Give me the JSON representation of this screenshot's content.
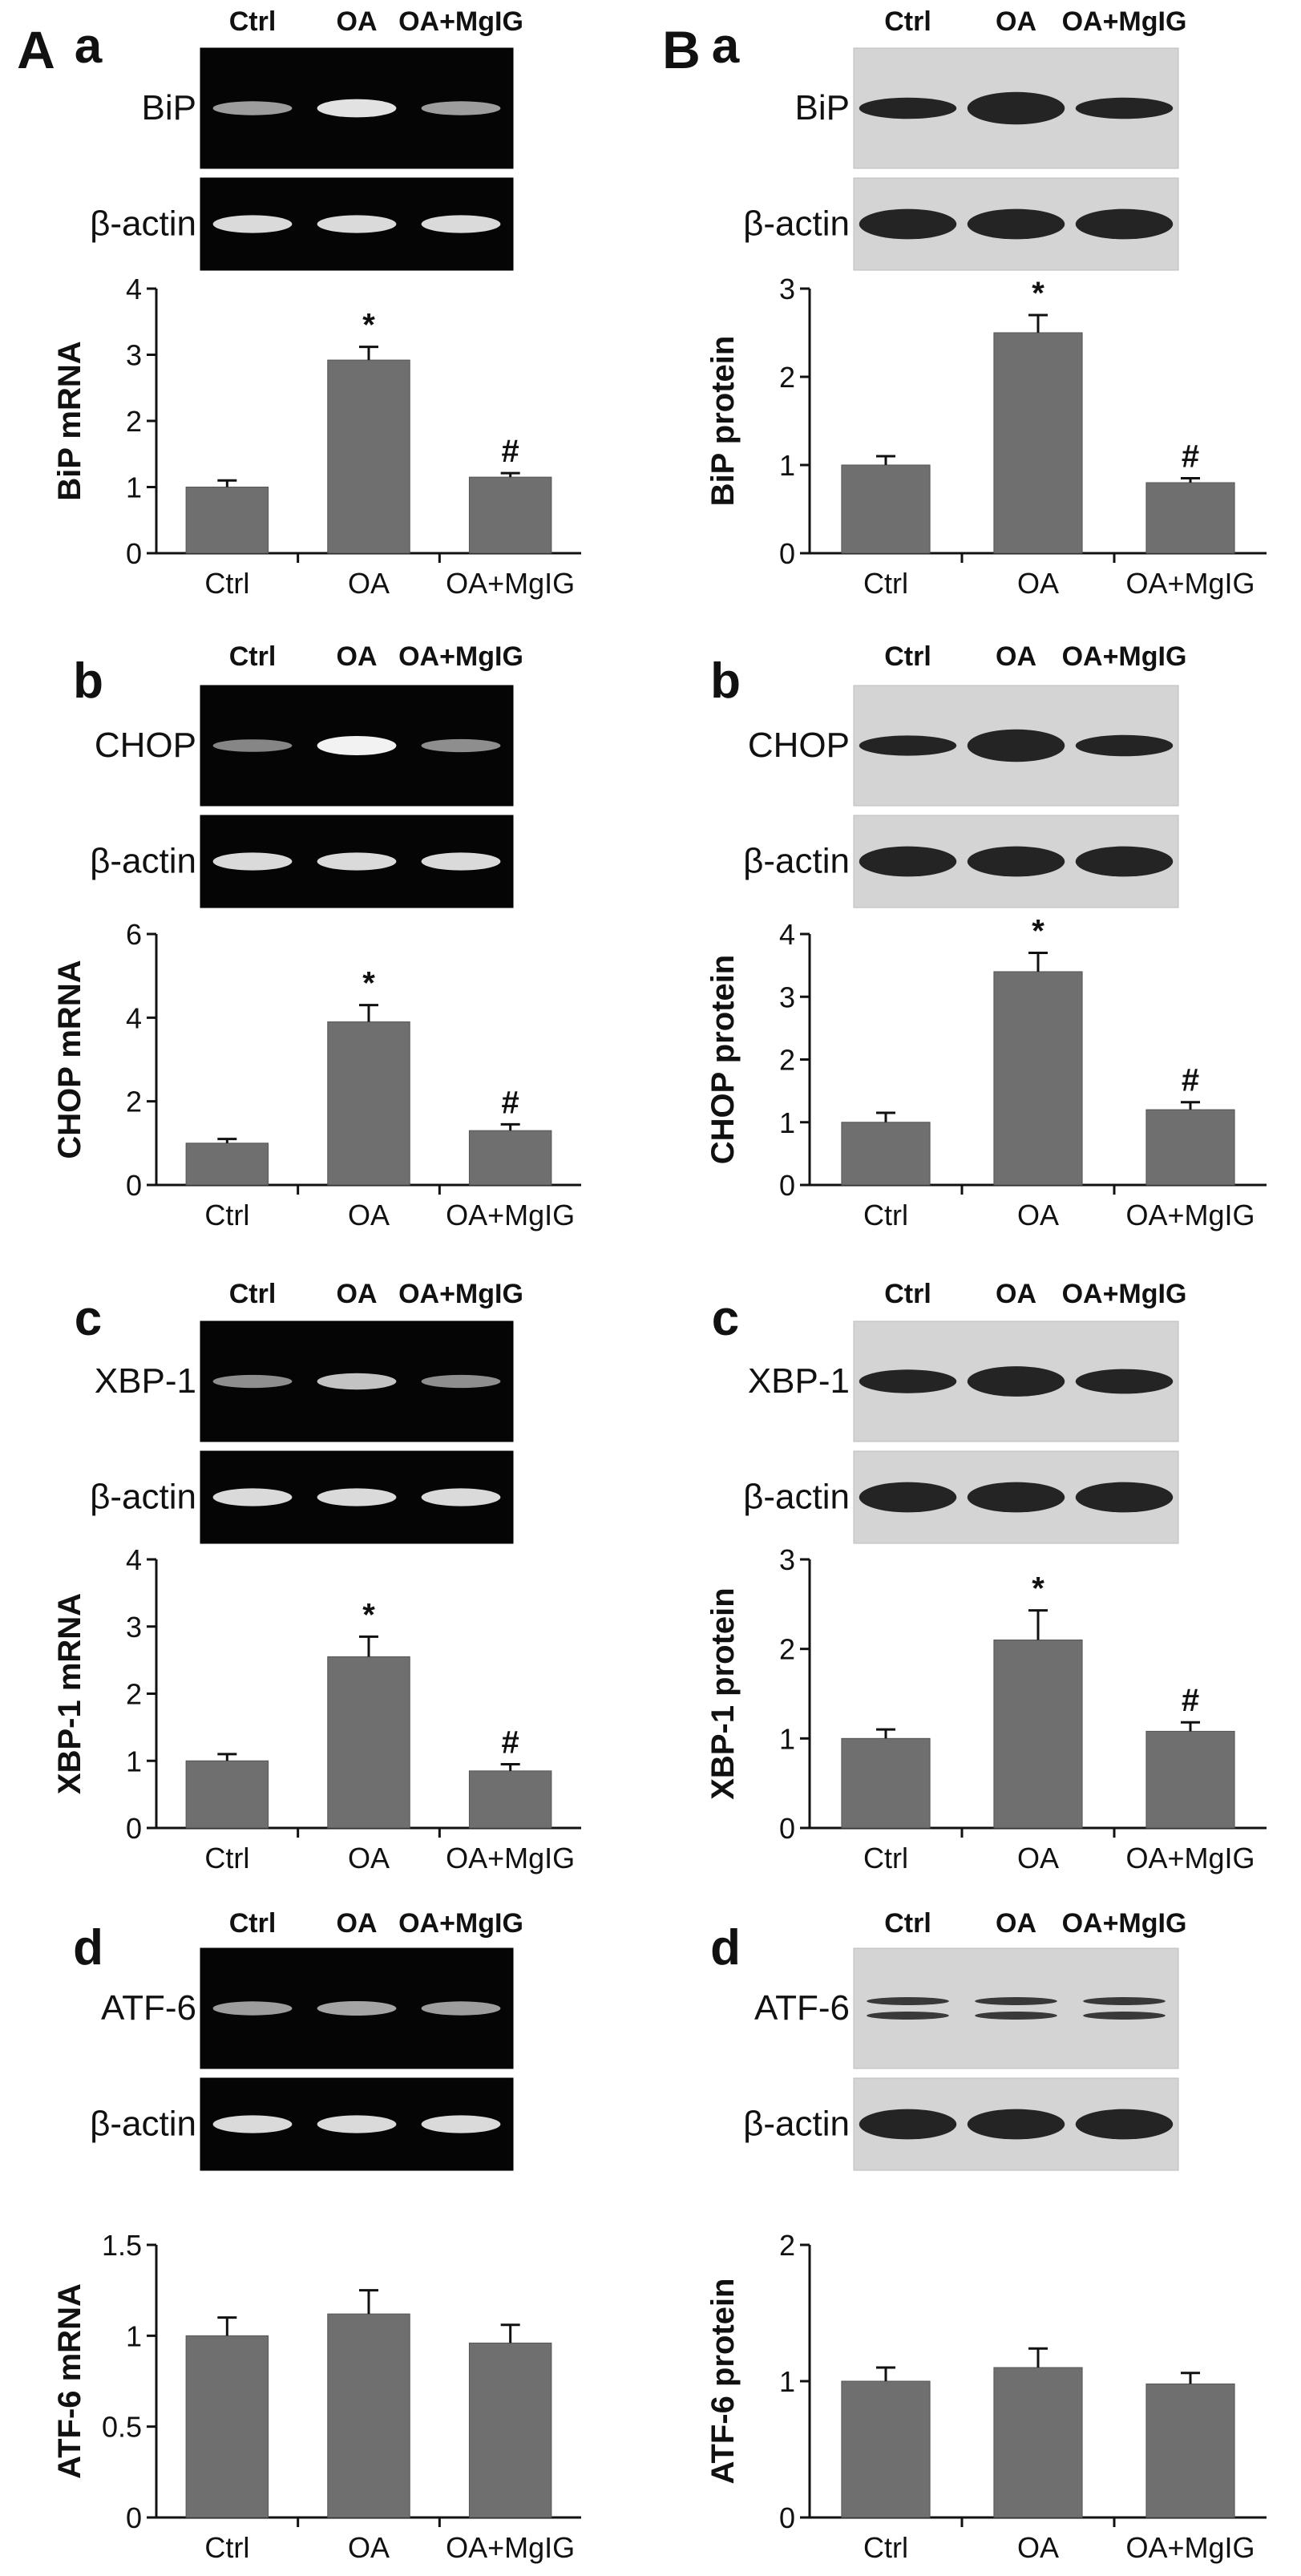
{
  "colors": {
    "bar": "#6f6f6f",
    "axis": "#111111",
    "gel_bg": "#050505",
    "gel_band": "#f2f2f2",
    "blot_bg": "#d4d4d4",
    "blot_band": "#111111"
  },
  "panel_labels": {
    "A": "A",
    "B": "B"
  },
  "chart_data": [
    {
      "type": "bar",
      "panel": "A",
      "sub": "a",
      "assay": "gel",
      "lanes": [
        "Ctrl",
        "OA",
        "OA+MgIG"
      ],
      "gene": "BiP",
      "loading": "β-actin",
      "band": [
        0.45,
        0.9,
        0.45
      ],
      "categories": [
        "Ctrl",
        "OA",
        "OA+MgIG"
      ],
      "values": [
        1.0,
        2.92,
        1.15
      ],
      "errors": [
        0.1,
        0.2,
        0.06
      ],
      "marks": [
        "",
        "*",
        "#"
      ],
      "ylabel": "BiP mRNA",
      "ylim": [
        0,
        4
      ],
      "yticks": [
        "0",
        "1",
        "2",
        "3",
        "4"
      ]
    },
    {
      "type": "bar",
      "panel": "B",
      "sub": "a",
      "assay": "blot",
      "lanes": [
        "Ctrl",
        "OA",
        "OA+MgIG"
      ],
      "gene": "BiP",
      "loading": "β-actin",
      "band": [
        0.45,
        0.95,
        0.45
      ],
      "categories": [
        "Ctrl",
        "OA",
        "OA+MgIG"
      ],
      "values": [
        1.0,
        2.5,
        0.8
      ],
      "errors": [
        0.1,
        0.2,
        0.05
      ],
      "marks": [
        "",
        "*",
        "#"
      ],
      "ylabel": "BiP protein",
      "ylim": [
        0,
        3
      ],
      "yticks": [
        "0",
        "1",
        "2",
        "3"
      ]
    },
    {
      "type": "bar",
      "panel": "A",
      "sub": "b",
      "assay": "gel",
      "lanes": [
        "Ctrl",
        "OA",
        "OA+MgIG"
      ],
      "gene": "CHOP",
      "loading": "β-actin",
      "band": [
        0.3,
        1.0,
        0.35
      ],
      "categories": [
        "Ctrl",
        "OA",
        "OA+MgIG"
      ],
      "values": [
        1.0,
        3.9,
        1.3
      ],
      "errors": [
        0.1,
        0.4,
        0.15
      ],
      "marks": [
        "",
        "*",
        "#"
      ],
      "ylabel": "CHOP mRNA",
      "ylim": [
        0,
        6
      ],
      "yticks": [
        "0",
        "2",
        "4",
        "6"
      ]
    },
    {
      "type": "bar",
      "panel": "B",
      "sub": "b",
      "assay": "blot",
      "lanes": [
        "Ctrl",
        "OA",
        "OA+MgIG"
      ],
      "gene": "CHOP",
      "loading": "β-actin",
      "band": [
        0.4,
        0.95,
        0.45
      ],
      "categories": [
        "Ctrl",
        "OA",
        "OA+MgIG"
      ],
      "values": [
        1.0,
        3.4,
        1.2
      ],
      "errors": [
        0.15,
        0.3,
        0.12
      ],
      "marks": [
        "",
        "*",
        "#"
      ],
      "ylabel": "CHOP protein",
      "ylim": [
        0,
        4
      ],
      "yticks": [
        "0",
        "1",
        "2",
        "3",
        "4"
      ]
    },
    {
      "type": "bar",
      "panel": "A",
      "sub": "c",
      "assay": "gel",
      "lanes": [
        "Ctrl",
        "OA",
        "OA+MgIG"
      ],
      "gene": "XBP-1",
      "loading": "β-actin",
      "band": [
        0.35,
        0.7,
        0.35
      ],
      "categories": [
        "Ctrl",
        "OA",
        "OA+MgIG"
      ],
      "values": [
        1.0,
        2.55,
        0.85
      ],
      "errors": [
        0.1,
        0.3,
        0.1
      ],
      "marks": [
        "",
        "*",
        "#"
      ],
      "ylabel": "XBP-1 mRNA",
      "ylim": [
        0,
        4
      ],
      "yticks": [
        "0",
        "1",
        "2",
        "3",
        "4"
      ]
    },
    {
      "type": "bar",
      "panel": "B",
      "sub": "c",
      "assay": "blot",
      "lanes": [
        "Ctrl",
        "OA",
        "OA+MgIG"
      ],
      "gene": "XBP-1",
      "loading": "β-actin",
      "band": [
        0.55,
        0.85,
        0.6
      ],
      "categories": [
        "Ctrl",
        "OA",
        "OA+MgIG"
      ],
      "values": [
        1.0,
        2.1,
        1.08
      ],
      "errors": [
        0.1,
        0.33,
        0.1
      ],
      "marks": [
        "",
        "*",
        "#"
      ],
      "ylabel": "XBP-1 protein",
      "ylim": [
        0,
        3
      ],
      "yticks": [
        "0",
        "1",
        "2",
        "3"
      ]
    },
    {
      "type": "bar",
      "panel": "A",
      "sub": "d",
      "assay": "gel",
      "lanes": [
        "Ctrl",
        "OA",
        "OA+MgIG"
      ],
      "gene": "ATF-6",
      "loading": "β-actin",
      "band": [
        0.45,
        0.5,
        0.45
      ],
      "categories": [
        "Ctrl",
        "OA",
        "OA+MgIG"
      ],
      "values": [
        1.0,
        1.12,
        0.96
      ],
      "errors": [
        0.1,
        0.13,
        0.1
      ],
      "marks": [
        "",
        "",
        ""
      ],
      "ylabel": "ATF-6 mRNA",
      "ylim": [
        0,
        1.5
      ],
      "yticks": [
        "0",
        "0.5",
        "1",
        "1.5"
      ]
    },
    {
      "type": "bar",
      "panel": "B",
      "sub": "d",
      "assay": "blot",
      "lanes": [
        "Ctrl",
        "OA",
        "OA+MgIG"
      ],
      "gene": "ATF-6",
      "loading": "β-actin",
      "band": [
        0.55,
        0.55,
        0.5
      ],
      "doublet": true,
      "categories": [
        "Ctrl",
        "OA",
        "OA+MgIG"
      ],
      "values": [
        1.0,
        1.1,
        0.98
      ],
      "errors": [
        0.1,
        0.14,
        0.08
      ],
      "marks": [
        "",
        "",
        ""
      ],
      "ylabel": "ATF-6 protein",
      "ylim": [
        0,
        2
      ],
      "yticks": [
        "0",
        "1",
        "2"
      ]
    }
  ]
}
